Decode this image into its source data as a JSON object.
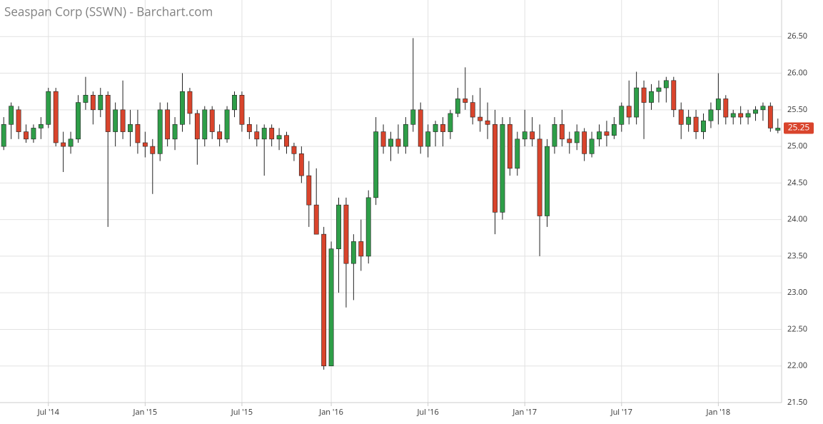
{
  "chart_data": {
    "type": "candlestick",
    "title": "Seaspan Corp (SSWN) - Barchart.com",
    "categories": [
      null,
      null,
      null,
      null,
      null,
      null,
      "Jul '14",
      null,
      null,
      null,
      null,
      null,
      null,
      null,
      null,
      null,
      null,
      null,
      null,
      "Jan '15",
      null,
      null,
      null,
      null,
      null,
      null,
      null,
      null,
      null,
      null,
      null,
      null,
      "Jul '15",
      null,
      null,
      null,
      null,
      null,
      null,
      null,
      null,
      null,
      null,
      null,
      "Jan '16",
      null,
      null,
      null,
      null,
      null,
      null,
      null,
      null,
      null,
      null,
      null,
      null,
      "Jul '16",
      null,
      null,
      null,
      null,
      null,
      null,
      null,
      null,
      null,
      null,
      null,
      null,
      "Jan '17",
      null,
      null,
      null,
      null,
      null,
      null,
      null,
      null,
      null,
      null,
      null,
      null,
      "Jul '17",
      null,
      null,
      null,
      null,
      null,
      null,
      null,
      null,
      null,
      null,
      null,
      null,
      "Jan '18",
      null,
      null,
      null,
      null,
      null,
      null,
      null,
      null
    ],
    "open": [
      25.0,
      25.3,
      25.5,
      25.2,
      25.1,
      25.25,
      25.3,
      25.75,
      25.05,
      25.0,
      25.1,
      25.6,
      25.7,
      25.5,
      25.7,
      25.2,
      25.5,
      25.2,
      25.3,
      25.05,
      25.0,
      24.9,
      25.5,
      25.1,
      25.3,
      25.75,
      25.45,
      25.1,
      25.5,
      25.2,
      25.1,
      25.5,
      25.7,
      25.3,
      25.2,
      25.1,
      25.25,
      25.1,
      25.15,
      25.0,
      24.9,
      24.6,
      24.2,
      23.8,
      22.0,
      23.6,
      24.2,
      23.4,
      23.7,
      23.5,
      24.3,
      25.2,
      25.0,
      25.1,
      25.0,
      25.3,
      25.5,
      25.0,
      25.2,
      25.3,
      25.2,
      25.45,
      25.65,
      25.6,
      25.4,
      25.35,
      25.3,
      24.1,
      25.3,
      24.7,
      25.1,
      25.2,
      25.1,
      24.05,
      25.0,
      25.3,
      25.1,
      25.05,
      25.2,
      24.9,
      25.1,
      25.2,
      25.15,
      25.3,
      25.55,
      25.4,
      25.8,
      25.6,
      25.75,
      25.8,
      25.9,
      25.5,
      25.3,
      25.4,
      25.2,
      25.35,
      25.5,
      25.65,
      25.4,
      25.45,
      25.4,
      25.45,
      25.5,
      25.55,
      25.22
    ],
    "high": [
      25.4,
      25.6,
      25.55,
      25.3,
      25.3,
      25.4,
      25.8,
      25.8,
      25.2,
      25.2,
      25.7,
      25.95,
      25.75,
      25.8,
      25.75,
      25.6,
      25.9,
      25.5,
      25.5,
      25.2,
      25.1,
      25.6,
      25.6,
      25.4,
      26.0,
      25.8,
      25.5,
      25.55,
      25.55,
      25.3,
      25.55,
      25.75,
      25.75,
      25.4,
      25.3,
      25.3,
      25.3,
      25.25,
      25.2,
      25.05,
      25.0,
      24.8,
      24.7,
      23.9,
      23.7,
      24.3,
      24.3,
      23.8,
      24.0,
      24.4,
      25.4,
      25.3,
      25.2,
      25.3,
      25.4,
      26.48,
      25.6,
      25.3,
      25.35,
      25.4,
      25.5,
      25.8,
      26.08,
      25.7,
      25.8,
      25.6,
      25.5,
      25.4,
      25.4,
      25.2,
      25.5,
      25.4,
      25.3,
      25.1,
      25.4,
      25.5,
      25.2,
      25.3,
      25.25,
      25.2,
      25.3,
      25.35,
      25.4,
      25.6,
      25.9,
      26.02,
      25.9,
      25.85,
      25.9,
      25.95,
      25.95,
      25.6,
      25.5,
      25.5,
      25.45,
      25.6,
      26.0,
      25.7,
      25.5,
      25.55,
      25.5,
      25.55,
      25.6,
      25.6,
      25.38
    ],
    "low": [
      24.95,
      25.1,
      25.1,
      25.05,
      25.05,
      25.1,
      25.25,
      25.0,
      24.65,
      24.9,
      25.05,
      25.5,
      25.3,
      25.4,
      23.9,
      25.0,
      25.1,
      25.0,
      24.9,
      24.85,
      24.35,
      24.8,
      25.0,
      24.95,
      25.2,
      25.3,
      24.75,
      25.0,
      25.1,
      25.0,
      25.05,
      25.4,
      25.2,
      25.1,
      25.0,
      24.6,
      25.0,
      24.95,
      24.9,
      24.8,
      24.5,
      23.9,
      23.8,
      21.95,
      22.0,
      23.0,
      22.8,
      22.9,
      23.3,
      23.4,
      24.2,
      24.9,
      24.8,
      24.9,
      24.9,
      25.2,
      24.9,
      24.85,
      25.0,
      25.0,
      25.1,
      25.4,
      25.5,
      25.3,
      25.2,
      25.1,
      23.8,
      24.0,
      24.6,
      24.6,
      25.0,
      25.0,
      23.5,
      23.9,
      24.9,
      25.0,
      24.9,
      24.95,
      24.8,
      24.85,
      25.0,
      25.0,
      25.1,
      25.2,
      25.3,
      25.3,
      25.1,
      25.5,
      25.6,
      25.6,
      25.4,
      25.1,
      25.2,
      25.1,
      25.1,
      25.25,
      25.3,
      25.3,
      25.3,
      25.3,
      25.3,
      25.35,
      25.35,
      25.2,
      25.18
    ],
    "close": [
      25.3,
      25.55,
      25.2,
      25.1,
      25.25,
      25.3,
      25.75,
      25.05,
      25.0,
      25.1,
      25.6,
      25.7,
      25.5,
      25.7,
      25.2,
      25.5,
      25.2,
      25.3,
      25.05,
      25.0,
      24.9,
      25.5,
      25.1,
      25.3,
      25.75,
      25.45,
      25.1,
      25.5,
      25.2,
      25.1,
      25.5,
      25.7,
      25.3,
      25.2,
      25.1,
      25.25,
      25.1,
      25.15,
      25.0,
      24.9,
      24.6,
      24.2,
      23.8,
      22.0,
      23.6,
      24.2,
      23.4,
      23.7,
      23.5,
      24.3,
      25.2,
      25.0,
      25.1,
      25.0,
      25.3,
      25.5,
      25.0,
      25.2,
      25.3,
      25.2,
      25.45,
      25.65,
      25.6,
      25.4,
      25.35,
      25.3,
      24.1,
      25.3,
      24.7,
      25.1,
      25.2,
      25.1,
      24.05,
      25.0,
      25.3,
      25.1,
      25.05,
      25.2,
      24.9,
      25.1,
      25.2,
      25.15,
      25.3,
      25.55,
      25.4,
      25.8,
      25.6,
      25.75,
      25.8,
      25.9,
      25.5,
      25.3,
      25.4,
      25.2,
      25.35,
      25.5,
      25.65,
      25.4,
      25.45,
      25.4,
      25.45,
      25.5,
      25.55,
      25.25,
      25.25
    ],
    "up_color": "#2e9e48",
    "down_color": "#d9442c",
    "last_value": {
      "value": 25.25,
      "label": "25.25"
    },
    "ylim": [
      21.5,
      27.0
    ],
    "yticks": [
      {
        "value": 21.5,
        "label": "21.50"
      },
      {
        "value": 22,
        "label": "22.00"
      },
      {
        "value": 22.5,
        "label": "22.50"
      },
      {
        "value": 23,
        "label": "23.00"
      },
      {
        "value": 23.5,
        "label": "23.50"
      },
      {
        "value": 24,
        "label": "24.00"
      },
      {
        "value": 24.5,
        "label": "24.50"
      },
      {
        "value": 25,
        "label": "25.00"
      },
      {
        "value": 25.5,
        "label": "25.50"
      },
      {
        "value": 26,
        "label": "26.00"
      },
      {
        "value": 26.5,
        "label": "26.50"
      }
    ],
    "grid": true
  }
}
